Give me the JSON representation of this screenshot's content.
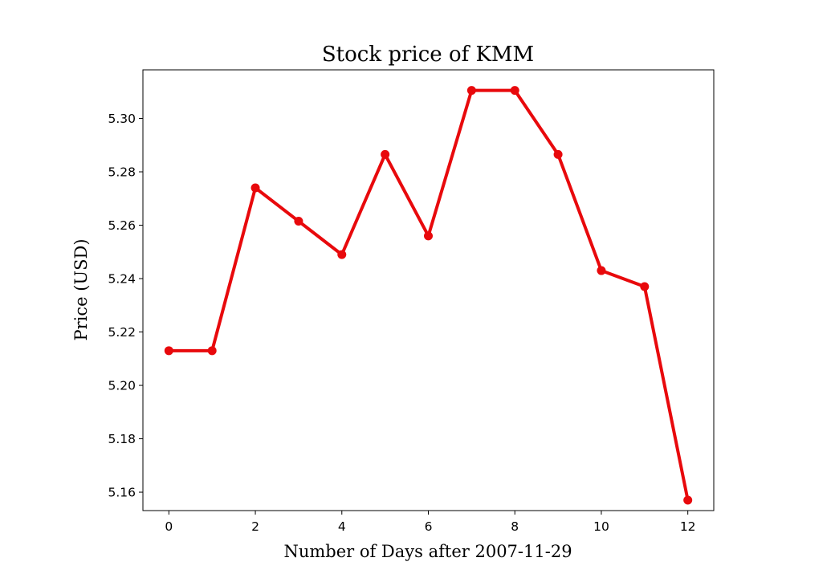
{
  "chart_data": {
    "type": "line",
    "title": "Stock price of KMM",
    "xlabel": "Number of Days after 2007-11-29",
    "ylabel": "Price (USD)",
    "x": [
      0,
      1,
      2,
      3,
      4,
      5,
      6,
      7,
      8,
      9,
      10,
      11,
      12
    ],
    "series": [
      {
        "values": [
          5.213,
          5.213,
          5.274,
          5.2615,
          5.249,
          5.2865,
          5.256,
          5.3105,
          5.3105,
          5.2865,
          5.243,
          5.237,
          5.157
        ],
        "color": "#e8090c"
      }
    ],
    "xticks": [
      0,
      2,
      4,
      6,
      8,
      10,
      12
    ],
    "xtick_labels": [
      "0",
      "2",
      "4",
      "6",
      "8",
      "10",
      "12"
    ],
    "yticks": [
      5.16,
      5.18,
      5.2,
      5.22,
      5.24,
      5.26,
      5.28,
      5.3
    ],
    "ytick_labels": [
      "5.16",
      "5.18",
      "5.20",
      "5.22",
      "5.24",
      "5.26",
      "5.28",
      "5.30"
    ],
    "xlim": [
      -0.6,
      12.6
    ],
    "ylim": [
      5.1531,
      5.3182
    ],
    "grid": false,
    "legend": "none"
  }
}
